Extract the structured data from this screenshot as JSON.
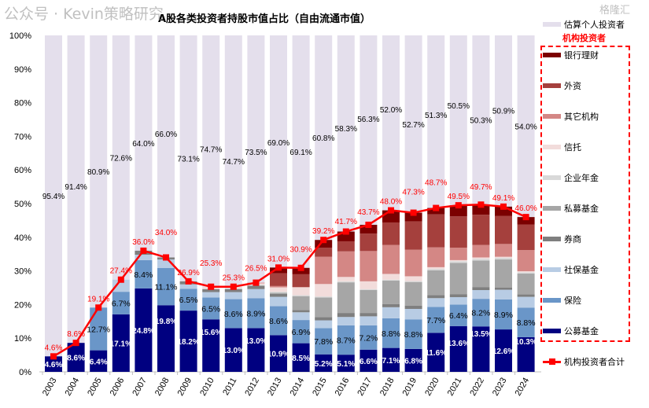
{
  "chart_data": {
    "type": "bar",
    "stacked": true,
    "title": "A股各类投资者持股市值占比（自由流通市值）",
    "categories": [
      "2003",
      "2004",
      "2005",
      "2006",
      "2007",
      "2008",
      "2009",
      "2010",
      "2011",
      "2012",
      "2013",
      "2014",
      "2015",
      "2016",
      "2017",
      "2018",
      "2019",
      "2020",
      "2021",
      "2022",
      "2023",
      "2024"
    ],
    "ylim": [
      0,
      100
    ],
    "yticks": [
      "0%",
      "10%",
      "20%",
      "30%",
      "40%",
      "50%",
      "60%",
      "70%",
      "80%",
      "90%",
      "100%"
    ],
    "grid": false,
    "legend_position": "right",
    "legend_group_label": "机构投资者",
    "series": [
      {
        "name": "公募基金",
        "color": "#000080",
        "values": [
          4.6,
          8.6,
          6.4,
          17.1,
          24.8,
          19.8,
          18.2,
          15.6,
          13.0,
          13.0,
          10.9,
          8.5,
          5.2,
          5.1,
          6.6,
          7.1,
          6.8,
          11.6,
          13.6,
          13.5,
          12.6,
          10.3
        ],
        "labels": [
          "4.6%",
          "8.6%",
          "6.4%",
          "17.1%",
          "24.8%",
          "19.8%",
          "18.2%",
          "15.6%",
          "13.0%",
          "13.0%",
          "10.9%",
          "8.5%",
          "5.2%",
          "5.1%",
          "6.6%",
          "7.1%",
          "6.8%",
          "11.6%",
          "13.6%",
          "13.5%",
          "12.6%",
          "10.3%"
        ]
      },
      {
        "name": "保险",
        "color": "#6a96c8",
        "values": [
          0,
          0,
          12.7,
          6.7,
          8.4,
          11.1,
          6.5,
          6.5,
          8.6,
          8.9,
          8.6,
          6.9,
          7.8,
          8.7,
          7.2,
          8.8,
          8.8,
          7.7,
          6.4,
          8.2,
          8.9,
          8.8
        ],
        "labels": [
          "",
          "",
          "12.7%",
          "6.7%",
          "8.4%",
          "11.1%",
          "6.5%",
          "6.5%",
          "8.6%",
          "8.9%",
          "8.6%",
          "6.9%",
          "7.8%",
          "8.7%",
          "7.2%",
          "8.8%",
          "8.8%",
          "7.7%",
          "6.4%",
          "8.2%",
          "8.9%",
          "8.8%"
        ]
      },
      {
        "name": "社保基金",
        "color": "#b8cce4",
        "values": [
          0,
          0,
          0,
          3.6,
          1.6,
          2.5,
          1.3,
          1.6,
          2.1,
          2.7,
          2.8,
          2.3,
          2.3,
          2.5,
          2.7,
          3.3,
          3.1,
          2.6,
          2.2,
          2.6,
          2.9,
          3.2
        ]
      },
      {
        "name": "券商",
        "color": "#7f7f7f",
        "values": [
          0,
          0,
          0,
          0,
          1.2,
          0.6,
          0.9,
          0.9,
          0.9,
          1.0,
          0.9,
          0.7,
          1.0,
          1.2,
          1.0,
          0.9,
          1.0,
          0.9,
          0.9,
          0.9,
          0.6,
          0.7
        ]
      },
      {
        "name": "私募基金",
        "color": "#a6a6a6",
        "values": [
          0,
          0,
          0,
          0,
          0,
          0,
          0,
          0,
          0,
          0,
          0.3,
          4.1,
          5.8,
          9.1,
          6.8,
          7.0,
          7.0,
          7.4,
          9.3,
          7.9,
          8.4,
          6.2
        ]
      },
      {
        "name": "企业年金",
        "color": "#d9d9d9",
        "values": [
          0,
          0,
          0,
          0,
          0,
          0,
          0,
          0,
          0.3,
          0.3,
          0.3,
          0.3,
          0.3,
          0.3,
          0.3,
          0.3,
          0.3,
          0.4,
          0.5,
          0.5,
          0.5,
          0.4
        ]
      },
      {
        "name": "信托",
        "color": "#f2dcdb",
        "values": [
          0,
          0,
          0,
          0,
          0,
          0,
          0,
          0.7,
          0.4,
          0.4,
          1.3,
          2.3,
          3.7,
          1.3,
          2.3,
          1.7,
          1.4,
          0.5,
          0.3,
          0.4,
          0.3,
          0.3
        ]
      },
      {
        "name": "其它机构",
        "color": "#d48785",
        "values": [
          0,
          0,
          0,
          0,
          0,
          0,
          0,
          0,
          0,
          0.2,
          0.4,
          0.1,
          8.1,
          7.6,
          9.0,
          8.6,
          7.9,
          5.9,
          3.7,
          3.7,
          3.8,
          6.3
        ]
      },
      {
        "name": "外资",
        "color": "#a5403d",
        "values": [
          0,
          0,
          0,
          0,
          0,
          0,
          0,
          0,
          0,
          0,
          3.8,
          3.8,
          2.7,
          3.0,
          5.2,
          6.7,
          8.4,
          9.8,
          9.3,
          9.0,
          8.3,
          7.6
        ]
      },
      {
        "name": "银行理财",
        "color": "#7b0000",
        "values": [
          0,
          0,
          0,
          0,
          0,
          0,
          0,
          0,
          0,
          0,
          1.7,
          1.9,
          2.3,
          2.9,
          2.6,
          3.6,
          2.6,
          1.9,
          3.3,
          3.0,
          2.8,
          2.2
        ]
      },
      {
        "name": "估算个人投资者",
        "color": "#e4dfec",
        "values": [
          95.4,
          91.4,
          80.9,
          72.6,
          64.0,
          66.0,
          73.1,
          74.7,
          74.7,
          73.5,
          69.0,
          69.1,
          60.8,
          58.3,
          56.3,
          52.0,
          52.7,
          51.3,
          50.5,
          50.3,
          50.9,
          54.0
        ],
        "labels": [
          "95.4%",
          "91.4%",
          "80.9%",
          "72.6%",
          "64.0%",
          "66.0%",
          "73.1%",
          "74.7%",
          "74.7%",
          "73.5%",
          "69.0%",
          "69.1%",
          "60.8%",
          "58.3%",
          "56.3%",
          "52.0%",
          "52.7%",
          "51.3%",
          "50.5%",
          "50.3%",
          "50.9%",
          "54.0%"
        ]
      }
    ],
    "line": {
      "name": "机构投资者合计",
      "color": "#ff0000",
      "values": [
        4.6,
        8.6,
        19.1,
        27.4,
        36.0,
        34.0,
        26.9,
        25.3,
        25.3,
        26.5,
        31.0,
        30.9,
        39.2,
        41.7,
        43.7,
        48.0,
        47.3,
        48.7,
        49.5,
        49.7,
        49.1,
        46.0
      ],
      "labels": [
        "4.6%",
        "8.6%",
        "19.1%",
        "27.4%",
        "36.0%",
        "34.0%",
        "26.9%",
        "25.3%",
        "25.3%",
        "26.5%",
        "31.0%",
        "30.9%",
        "39.2%",
        "41.7%",
        "43.7%",
        "48.0%",
        "47.3%",
        "48.7%",
        "49.5%",
        "49.7%",
        "49.1%",
        "46.0%"
      ]
    }
  },
  "watermark": {
    "text": "公众号 · Kevin策略研究",
    "logo": "格隆汇"
  }
}
